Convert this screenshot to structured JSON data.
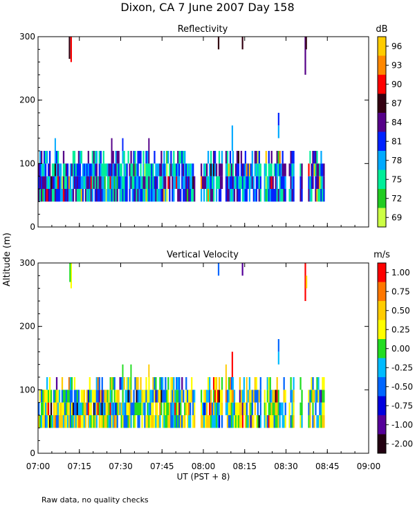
{
  "title": "Dixon, CA  7 June 2007  Day 158",
  "ylabel": "Altitude (m)",
  "xlabel": "UT  (PST + 8)",
  "footnote": "Raw data, no quality checks",
  "x_ticks": [
    "07:00",
    "07:15",
    "07:30",
    "07:45",
    "08:00",
    "08:15",
    "08:30",
    "08:45",
    "09:00"
  ],
  "chart_data": [
    {
      "type": "heatmap",
      "title": "Reflectivity",
      "colorbar_unit": "dB",
      "colorbar_ticks": [
        "96",
        "93",
        "90",
        "87",
        "84",
        "81",
        "78",
        "75",
        "72",
        "69"
      ],
      "colorbar_colors": [
        "#ffcc00",
        "#ff8800",
        "#ff0000",
        "#330011",
        "#550088",
        "#0022ff",
        "#00aaff",
        "#00ee99",
        "#22cc22",
        "#ccff44"
      ],
      "xlim_minutes": [
        0,
        120
      ],
      "ylim": [
        0,
        300
      ],
      "y_ticks": [
        "0",
        "100",
        "200",
        "300"
      ],
      "dominant_colors": [
        "#0022ff",
        "#00aaff",
        "#00ee99",
        "#550088"
      ],
      "dense_band_m": [
        40,
        100
      ],
      "spikes_m": [
        120,
        140
      ],
      "time_gaps_min": [
        [
          57,
          59
        ],
        [
          67,
          68
        ],
        [
          81,
          82
        ],
        [
          90,
          91
        ],
        [
          93,
          95
        ],
        [
          96,
          98
        ]
      ],
      "end_minute": 104,
      "elevated_echoes": [
        {
          "minute": 12.0,
          "bottom": 260,
          "top": 300,
          "color": "#ff0000"
        },
        {
          "minute": 11.4,
          "bottom": 265,
          "top": 300,
          "color": "#330011"
        },
        {
          "minute": 65.5,
          "bottom": 280,
          "top": 300,
          "color": "#330011"
        },
        {
          "minute": 74.2,
          "bottom": 280,
          "top": 300,
          "color": "#330011"
        },
        {
          "minute": 87.3,
          "bottom": 160,
          "top": 180,
          "color": "#0022ff"
        },
        {
          "minute": 87.3,
          "bottom": 140,
          "top": 160,
          "color": "#00aaff"
        },
        {
          "minute": 97.0,
          "bottom": 240,
          "top": 300,
          "color": "#550088"
        },
        {
          "minute": 97.3,
          "bottom": 280,
          "top": 300,
          "color": "#330011"
        },
        {
          "minute": 70.5,
          "bottom": 120,
          "top": 160,
          "color": "#00aaff"
        }
      ]
    },
    {
      "type": "heatmap",
      "title": "Vertical Velocity",
      "colorbar_unit": "m/s",
      "colorbar_ticks": [
        "1.00",
        "0.75",
        "0.50",
        "0.25",
        "0.00",
        "-0.25",
        "-0.50",
        "-0.75",
        "-1.00",
        "-2.00"
      ],
      "colorbar_colors": [
        "#ff0000",
        "#ff7700",
        "#ffcc00",
        "#ffff00",
        "#22dd22",
        "#00bbff",
        "#0066ff",
        "#0000dd",
        "#550099",
        "#220011"
      ],
      "xlim_minutes": [
        0,
        120
      ],
      "ylim": [
        0,
        300
      ],
      "y_ticks": [
        "0",
        "100",
        "200",
        "300"
      ],
      "dominant_colors": [
        "#22dd22",
        "#ffff00",
        "#00bbff",
        "#ffcc00",
        "#0066ff"
      ],
      "dense_band_m": [
        40,
        100
      ],
      "spikes_m": [
        120,
        140
      ],
      "time_gaps_min": [
        [
          57,
          59
        ],
        [
          67,
          68
        ],
        [
          81,
          82
        ],
        [
          90,
          91
        ],
        [
          93,
          95
        ],
        [
          96,
          98
        ]
      ],
      "end_minute": 104,
      "elevated_echoes": [
        {
          "minute": 12.0,
          "bottom": 260,
          "top": 300,
          "color": "#ffff00"
        },
        {
          "minute": 11.6,
          "bottom": 270,
          "top": 300,
          "color": "#22dd22"
        },
        {
          "minute": 65.5,
          "bottom": 280,
          "top": 300,
          "color": "#0066ff"
        },
        {
          "minute": 74.2,
          "bottom": 280,
          "top": 300,
          "color": "#550099"
        },
        {
          "minute": 87.3,
          "bottom": 160,
          "top": 180,
          "color": "#0066ff"
        },
        {
          "minute": 87.3,
          "bottom": 140,
          "top": 160,
          "color": "#00bbff"
        },
        {
          "minute": 97.0,
          "bottom": 240,
          "top": 300,
          "color": "#ff0000"
        },
        {
          "minute": 97.4,
          "bottom": 260,
          "top": 280,
          "color": "#ffcc00"
        },
        {
          "minute": 70.5,
          "bottom": 120,
          "top": 160,
          "color": "#ff0000"
        }
      ]
    }
  ]
}
